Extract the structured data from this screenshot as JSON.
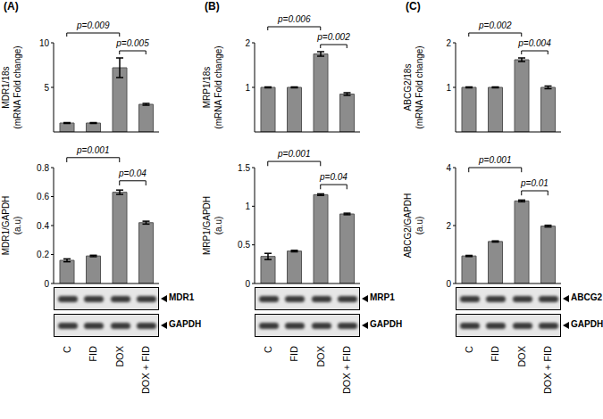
{
  "chart_data": [
    {
      "type": "bar",
      "title": "(A)",
      "y_label": "MDR1/18s\n(mRNA Fold change)",
      "categories": [
        "C",
        "FID",
        "DOX",
        "DOX + FID"
      ],
      "values": [
        1,
        1,
        7.2,
        3.1
      ],
      "errors": [
        0.05,
        0.05,
        1.1,
        0.1
      ],
      "ylim": [
        0,
        10
      ],
      "yticks": [
        0,
        5,
        10
      ],
      "color": "#8c8c8c",
      "tick_labels": "y",
      "annotations": [
        {
          "text": "p=0.009",
          "from": "C",
          "to": "DOX"
        },
        {
          "text": "p=0.005",
          "from": "DOX",
          "to": "DOX + FID"
        }
      ]
    },
    {
      "type": "bar",
      "y_label": "MDR1/GAPDH\n(a.u)",
      "categories": [
        "C",
        "FID",
        "DOX",
        "DOX + FID"
      ],
      "values": [
        0.16,
        0.19,
        0.63,
        0.42
      ],
      "errors": [
        0.01,
        0.005,
        0.015,
        0.01
      ],
      "ylim": [
        0,
        0.8
      ],
      "yticks": [
        0,
        0.2,
        0.4,
        0.6,
        0.8
      ],
      "color": "#8c8c8c",
      "annotations": [
        {
          "text": "p=0.001",
          "from": "C",
          "to": "DOX"
        },
        {
          "text": "p=0.04",
          "from": "DOX",
          "to": "DOX + FID"
        }
      ],
      "blots": [
        "MDR1",
        "GAPDH"
      ]
    },
    {
      "type": "bar",
      "title": "(B)",
      "y_label": "MRP1/18s\n(mRNA Fold change)",
      "categories": [
        "C",
        "FID",
        "DOX",
        "DOX + FID"
      ],
      "values": [
        1,
        1,
        1.75,
        0.85
      ],
      "errors": [
        0.01,
        0.01,
        0.05,
        0.03
      ],
      "ylim": [
        0,
        2
      ],
      "yticks": [
        0,
        1,
        2
      ],
      "color": "#8c8c8c",
      "tick_labels": "y",
      "annotations": [
        {
          "text": "p=0.006",
          "from": "C",
          "to": "DOX"
        },
        {
          "text": "p=0.002",
          "from": "DOX",
          "to": "DOX + FID"
        }
      ]
    },
    {
      "type": "bar",
      "y_label": "MRP1/GAPDH\n(a.u)",
      "categories": [
        "C",
        "FID",
        "DOX",
        "DOX + FID"
      ],
      "values": [
        0.35,
        0.42,
        1.15,
        0.9
      ],
      "errors": [
        0.04,
        0.01,
        0.01,
        0.01
      ],
      "ylim": [
        0,
        1.5
      ],
      "yticks": [
        0,
        0.5,
        1,
        1.5
      ],
      "color": "#8c8c8c",
      "annotations": [
        {
          "text": "p=0.001",
          "from": "C",
          "to": "DOX"
        },
        {
          "text": "p=0.04",
          "from": "DOX",
          "to": "DOX + FID"
        }
      ],
      "blots": [
        "MRP1",
        "GAPDH"
      ]
    },
    {
      "type": "bar",
      "title": "(C)",
      "y_label": "ABCG2/18s\n(mRNA Fold change)",
      "categories": [
        "C",
        "FID",
        "DOX",
        "DOX + FID"
      ],
      "values": [
        1,
        1,
        1.62,
        1.0
      ],
      "errors": [
        0.01,
        0.01,
        0.04,
        0.03
      ],
      "ylim": [
        0,
        2
      ],
      "yticks": [
        0,
        1,
        2
      ],
      "color": "#8c8c8c",
      "tick_labels": "y",
      "annotations": [
        {
          "text": "p=0.002",
          "from": "C",
          "to": "DOX"
        },
        {
          "text": "p=0.004",
          "from": "DOX",
          "to": "DOX + FID"
        }
      ]
    },
    {
      "type": "bar",
      "y_label": "ABCG2/GAPDH\n(a.u)",
      "categories": [
        "C",
        "FID",
        "DOX",
        "DOX + FID"
      ],
      "values": [
        0.95,
        1.45,
        2.85,
        1.98
      ],
      "errors": [
        0.02,
        0.02,
        0.03,
        0.03
      ],
      "ylim": [
        0,
        4
      ],
      "yticks": [
        0,
        2,
        4
      ],
      "color": "#8c8c8c",
      "annotations": [
        {
          "text": "p=0.001",
          "from": "C",
          "to": "DOX"
        },
        {
          "text": "p=0.01",
          "from": "DOX",
          "to": "DOX + FID"
        }
      ],
      "blots": [
        "ABCG2",
        "GAPDH"
      ]
    }
  ]
}
